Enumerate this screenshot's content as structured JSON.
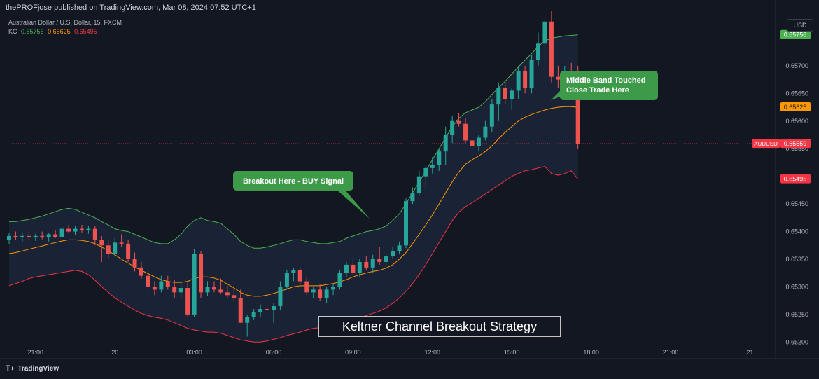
{
  "header": {
    "publisher": "thePROFjose published on TradingView.com, Mar 08, 2024 07:52 UTC+1",
    "symbol_line": "Australian Dollar / U.S. Dollar, 15, FXCM",
    "kc_label": "KC",
    "kc_upper": "0.65756",
    "kc_middle": "0.65625",
    "kc_lower": "0.65495"
  },
  "currency_button": "USD",
  "brand": "TradingView",
  "colors": {
    "background": "#131722",
    "up": "#26a69a",
    "down": "#ef5350",
    "upper_band": "#4caf50",
    "middle_band": "#ff9800",
    "lower_band": "#f23645",
    "callout": "#3d9a48",
    "title_border": "#ffffff"
  },
  "chart_data": {
    "type": "candlestick",
    "instrument": "AUDUSD",
    "timeframe": "15",
    "y_axis": {
      "range": [
        0.6517,
        0.658
      ],
      "ticks": [
        "0.65700",
        "0.65650",
        "0.65600",
        "0.65550",
        "0.65500",
        "0.65450",
        "0.65400",
        "0.65350",
        "0.65300",
        "0.65250",
        "0.65200"
      ]
    },
    "x_axis": {
      "ticks": [
        {
          "label": "21:00",
          "bar": 4
        },
        {
          "label": "20",
          "bar": 16
        },
        {
          "label": "03:00",
          "bar": 28
        },
        {
          "label": "06:00",
          "bar": 40
        },
        {
          "label": "09:00",
          "bar": 52
        },
        {
          "label": "12:00",
          "bar": 64
        },
        {
          "label": "15:00",
          "bar": 76
        },
        {
          "label": "18:00",
          "bar": 88
        },
        {
          "label": "21:00",
          "bar": 100
        },
        {
          "label": "21",
          "bar": 112
        }
      ]
    },
    "price_labels": [
      {
        "text": "0.65756",
        "value": 0.65756,
        "color": "#4caf50"
      },
      {
        "text": "0.65625",
        "value": 0.65625,
        "color": "#ff9800"
      },
      {
        "text": "AUDUSD",
        "value": 0.65559,
        "color": "#f23645",
        "symbol": true
      },
      {
        "text": "0.65559",
        "value": 0.65559,
        "color": "#f23645"
      },
      {
        "text": "0.65495",
        "value": 0.65495,
        "color": "#f23645"
      }
    ],
    "current_price": 0.65559,
    "candles": [
      [
        0.65385,
        0.65398,
        0.65378,
        0.65392
      ],
      [
        0.65392,
        0.654,
        0.65385,
        0.6539
      ],
      [
        0.6539,
        0.65398,
        0.65382,
        0.65392
      ],
      [
        0.65392,
        0.65399,
        0.65385,
        0.6539
      ],
      [
        0.6539,
        0.65396,
        0.65383,
        0.65392
      ],
      [
        0.65392,
        0.654,
        0.65386,
        0.6539
      ],
      [
        0.6539,
        0.65398,
        0.65382,
        0.65395
      ],
      [
        0.65395,
        0.65402,
        0.65388,
        0.6539
      ],
      [
        0.6539,
        0.6541,
        0.65388,
        0.65405
      ],
      [
        0.65405,
        0.65412,
        0.65398,
        0.654
      ],
      [
        0.654,
        0.6541,
        0.65394,
        0.65405
      ],
      [
        0.65405,
        0.65412,
        0.65398,
        0.65402
      ],
      [
        0.65402,
        0.6541,
        0.65396,
        0.65405
      ],
      [
        0.65405,
        0.6541,
        0.65375,
        0.65385
      ],
      [
        0.65385,
        0.65392,
        0.65345,
        0.65375
      ],
      [
        0.65375,
        0.65385,
        0.6535,
        0.6536
      ],
      [
        0.6536,
        0.65388,
        0.65355,
        0.6538
      ],
      [
        0.6538,
        0.65395,
        0.65372,
        0.65378
      ],
      [
        0.65378,
        0.65385,
        0.65345,
        0.6535
      ],
      [
        0.6535,
        0.65362,
        0.65328,
        0.65335
      ],
      [
        0.65335,
        0.65345,
        0.65315,
        0.6532
      ],
      [
        0.6532,
        0.65325,
        0.65288,
        0.653
      ],
      [
        0.653,
        0.6531,
        0.65285,
        0.65295
      ],
      [
        0.65295,
        0.6532,
        0.6529,
        0.6531
      ],
      [
        0.6531,
        0.6532,
        0.65295,
        0.653
      ],
      [
        0.653,
        0.65312,
        0.6528,
        0.6529
      ],
      [
        0.6529,
        0.65305,
        0.6528,
        0.65298
      ],
      [
        0.65298,
        0.6531,
        0.65245,
        0.6525
      ],
      [
        0.6525,
        0.65368,
        0.65245,
        0.6536
      ],
      [
        0.6536,
        0.65365,
        0.6528,
        0.6529
      ],
      [
        0.6529,
        0.6531,
        0.65284,
        0.653
      ],
      [
        0.653,
        0.6531,
        0.6529,
        0.65295
      ],
      [
        0.65295,
        0.65315,
        0.65288,
        0.6529
      ],
      [
        0.6529,
        0.65302,
        0.6528,
        0.65285
      ],
      [
        0.65285,
        0.653,
        0.65275,
        0.6528
      ],
      [
        0.6528,
        0.65295,
        0.6524,
        0.65235
      ],
      [
        0.65235,
        0.6525,
        0.6521,
        0.65245
      ],
      [
        0.65245,
        0.6526,
        0.6524,
        0.65255
      ],
      [
        0.65255,
        0.65268,
        0.65245,
        0.6526
      ],
      [
        0.6526,
        0.65272,
        0.6525,
        0.65258
      ],
      [
        0.65258,
        0.6527,
        0.65235,
        0.65265
      ],
      [
        0.65265,
        0.6531,
        0.65258,
        0.653
      ],
      [
        0.653,
        0.6533,
        0.65295,
        0.65325
      ],
      [
        0.65325,
        0.65335,
        0.6531,
        0.6533
      ],
      [
        0.6533,
        0.65335,
        0.65305,
        0.6531
      ],
      [
        0.6531,
        0.65318,
        0.65285,
        0.6529
      ],
      [
        0.6529,
        0.653,
        0.6528,
        0.65295
      ],
      [
        0.65295,
        0.65305,
        0.65275,
        0.6528
      ],
      [
        0.6528,
        0.653,
        0.6527,
        0.65295
      ],
      [
        0.65295,
        0.65305,
        0.65285,
        0.653
      ],
      [
        0.653,
        0.6533,
        0.65295,
        0.65325
      ],
      [
        0.65325,
        0.65345,
        0.65318,
        0.6534
      ],
      [
        0.6534,
        0.6535,
        0.6532,
        0.65325
      ],
      [
        0.65325,
        0.6535,
        0.65318,
        0.65345
      ],
      [
        0.65345,
        0.65355,
        0.6533,
        0.65335
      ],
      [
        0.65335,
        0.65358,
        0.65325,
        0.6535
      ],
      [
        0.6535,
        0.65372,
        0.6534,
        0.65345
      ],
      [
        0.65345,
        0.6536,
        0.65338,
        0.65355
      ],
      [
        0.65355,
        0.65372,
        0.6535,
        0.65365
      ],
      [
        0.65365,
        0.65382,
        0.6536,
        0.65375
      ],
      [
        0.65375,
        0.6546,
        0.6537,
        0.65455
      ],
      [
        0.65455,
        0.6548,
        0.6545,
        0.6547
      ],
      [
        0.6547,
        0.6551,
        0.65465,
        0.655
      ],
      [
        0.655,
        0.6552,
        0.6548,
        0.65515
      ],
      [
        0.65515,
        0.65535,
        0.65505,
        0.6552
      ],
      [
        0.6552,
        0.6555,
        0.6551,
        0.65545
      ],
      [
        0.65545,
        0.6559,
        0.6552,
        0.65575
      ],
      [
        0.65575,
        0.6561,
        0.6556,
        0.656
      ],
      [
        0.656,
        0.65615,
        0.6559,
        0.65595
      ],
      [
        0.65595,
        0.65605,
        0.6556,
        0.65565
      ],
      [
        0.65565,
        0.6558,
        0.6555,
        0.65555
      ],
      [
        0.65555,
        0.65575,
        0.65545,
        0.6557
      ],
      [
        0.6557,
        0.656,
        0.65565,
        0.6559
      ],
      [
        0.6559,
        0.6564,
        0.6558,
        0.6563
      ],
      [
        0.6563,
        0.6567,
        0.656,
        0.6566
      ],
      [
        0.6566,
        0.6567,
        0.6563,
        0.6564
      ],
      [
        0.6564,
        0.6566,
        0.6562,
        0.65655
      ],
      [
        0.65655,
        0.657,
        0.6564,
        0.6569
      ],
      [
        0.6569,
        0.657,
        0.6565,
        0.6566
      ],
      [
        0.6566,
        0.6572,
        0.6565,
        0.6571
      ],
      [
        0.6571,
        0.6576,
        0.657,
        0.6574
      ],
      [
        0.6574,
        0.6579,
        0.657,
        0.6578
      ],
      [
        0.6578,
        0.658,
        0.6567,
        0.6568
      ],
      [
        0.6568,
        0.657,
        0.6566,
        0.65675
      ],
      [
        0.65675,
        0.657,
        0.65665,
        0.6569
      ],
      [
        0.6569,
        0.65705,
        0.65665,
        0.6567
      ],
      [
        0.6567,
        0.657,
        0.6555,
        0.65559
      ]
    ],
    "bands": {
      "upper": [
        0.65418,
        0.65418,
        0.6542,
        0.65422,
        0.65425,
        0.65428,
        0.65432,
        0.65436,
        0.6544,
        0.65442,
        0.6544,
        0.65435,
        0.6543,
        0.65425,
        0.65418,
        0.65412,
        0.65405,
        0.65402,
        0.654,
        0.65395,
        0.6539,
        0.65385,
        0.6538,
        0.65378,
        0.65378,
        0.65385,
        0.65395,
        0.6541,
        0.6542,
        0.65425,
        0.6542,
        0.65418,
        0.65415,
        0.65405,
        0.65395,
        0.65382,
        0.65375,
        0.6537,
        0.6537,
        0.65372,
        0.65375,
        0.65378,
        0.65382,
        0.65385,
        0.65385,
        0.65382,
        0.6538,
        0.65378,
        0.65378,
        0.6538,
        0.65382,
        0.65388,
        0.65392,
        0.65396,
        0.654,
        0.65402,
        0.65405,
        0.6541,
        0.6542,
        0.65432,
        0.6545,
        0.6547,
        0.6549,
        0.6551,
        0.6553,
        0.6555,
        0.6557,
        0.6559,
        0.65605,
        0.65615,
        0.6562,
        0.65625,
        0.65635,
        0.65648,
        0.6566,
        0.65672,
        0.65685,
        0.65698,
        0.6571,
        0.65722,
        0.65735,
        0.65745,
        0.6575,
        0.65752,
        0.65754,
        0.65755,
        0.65756
      ],
      "middle": [
        0.6536,
        0.65362,
        0.65365,
        0.65368,
        0.65371,
        0.65374,
        0.65377,
        0.6538,
        0.65383,
        0.65385,
        0.65385,
        0.65384,
        0.65382,
        0.65378,
        0.65372,
        0.65365,
        0.65358,
        0.6535,
        0.65343,
        0.65336,
        0.6533,
        0.65324,
        0.65318,
        0.65313,
        0.6531,
        0.65308,
        0.65308,
        0.6531,
        0.65315,
        0.65318,
        0.65318,
        0.65316,
        0.65312,
        0.65305,
        0.65298,
        0.6529,
        0.65285,
        0.65283,
        0.65283,
        0.65285,
        0.65288,
        0.65292,
        0.65296,
        0.653,
        0.65302,
        0.65302,
        0.65302,
        0.65302,
        0.65304,
        0.65306,
        0.65309,
        0.65313,
        0.65318,
        0.65322,
        0.65325,
        0.65328,
        0.6533,
        0.65334,
        0.6534,
        0.6535,
        0.65362,
        0.65378,
        0.65395,
        0.65412,
        0.6543,
        0.6545,
        0.6547,
        0.6549,
        0.65508,
        0.65522,
        0.6553,
        0.65537,
        0.65545,
        0.65555,
        0.65568,
        0.6558,
        0.6559,
        0.656,
        0.65607,
        0.65612,
        0.65616,
        0.6562,
        0.65623,
        0.65625,
        0.65626,
        0.65626,
        0.65625
      ],
      "lower": [
        0.65302,
        0.65306,
        0.6531,
        0.65315,
        0.65318,
        0.6532,
        0.65322,
        0.65324,
        0.65326,
        0.65328,
        0.6533,
        0.65328,
        0.65322,
        0.65312,
        0.653,
        0.6529,
        0.6528,
        0.65272,
        0.65265,
        0.65258,
        0.65252,
        0.65248,
        0.65245,
        0.65243,
        0.6524,
        0.65235,
        0.6523,
        0.65225,
        0.65222,
        0.6522,
        0.65218,
        0.65218,
        0.65216,
        0.65212,
        0.65208,
        0.65204,
        0.65202,
        0.652,
        0.652,
        0.65202,
        0.65205,
        0.65208,
        0.65212,
        0.65215,
        0.65218,
        0.65222,
        0.65225,
        0.65226,
        0.65228,
        0.6523,
        0.65232,
        0.65234,
        0.65238,
        0.65243,
        0.65248,
        0.65252,
        0.65256,
        0.65262,
        0.6527,
        0.6528,
        0.65292,
        0.65306,
        0.65322,
        0.6534,
        0.6536,
        0.6538,
        0.654,
        0.6542,
        0.65435,
        0.65445,
        0.65452,
        0.6546,
        0.65468,
        0.65476,
        0.65484,
        0.65492,
        0.655,
        0.65505,
        0.6551,
        0.65512,
        0.65515,
        0.65518,
        0.65505,
        0.65502,
        0.65505,
        0.6551,
        0.65495
      ]
    },
    "annotations": {
      "breakout": "Breakout Here - BUY Signal",
      "middle_touched_1": "Middle Band Touched",
      "middle_touched_2": "Close Trade Here",
      "title": "Keltner Channel Breakout Strategy"
    }
  }
}
